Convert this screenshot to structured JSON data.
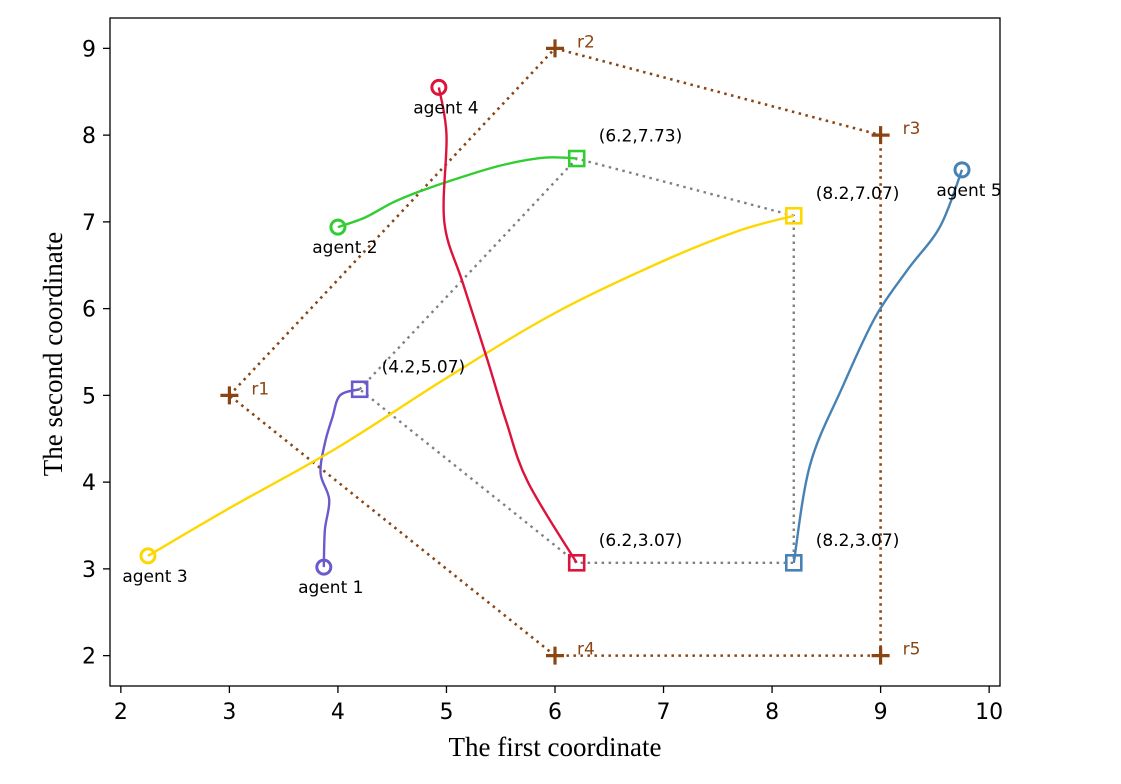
{
  "chart_data": {
    "type": "line",
    "xlabel": "The first coordinate",
    "ylabel": "The second coordinate",
    "xlim": [
      1.9,
      10.1
    ],
    "ylim": [
      1.65,
      9.35
    ],
    "xticks": [
      "2",
      "3",
      "4",
      "5",
      "6",
      "7",
      "8",
      "9",
      "10"
    ],
    "yticks": [
      "2",
      "3",
      "4",
      "5",
      "6",
      "7",
      "8",
      "9"
    ],
    "colors": {
      "boundary": "#8B4513",
      "formation": "#808080",
      "agent1": "#6A5ACD",
      "agent2": "#32CD32",
      "agent3": "#FFD700",
      "agent4": "#DC143C",
      "agent5": "#4682B4"
    },
    "boundary_points": [
      {
        "label": "r1",
        "x": 3,
        "y": 5
      },
      {
        "label": "r2",
        "x": 6,
        "y": 9
      },
      {
        "label": "r3",
        "x": 9,
        "y": 8
      },
      {
        "label": "r5",
        "x": 9,
        "y": 2
      },
      {
        "label": "r4",
        "x": 6,
        "y": 2
      }
    ],
    "formation_points": [
      {
        "label": "(4.2,5.07)",
        "x": 4.2,
        "y": 5.07,
        "agent": "agent1"
      },
      {
        "label": "(6.2,7.73)",
        "x": 6.2,
        "y": 7.73,
        "agent": "agent2"
      },
      {
        "label": "(8.2,7.07)",
        "x": 8.2,
        "y": 7.07,
        "agent": "agent3"
      },
      {
        "label": "(8.2,3.07)",
        "x": 8.2,
        "y": 3.07,
        "agent": "agent5"
      },
      {
        "label": "(6.2,3.07)",
        "x": 6.2,
        "y": 3.07,
        "agent": "agent4"
      }
    ],
    "series": [
      {
        "name": "agent 1",
        "key": "agent1",
        "x": [
          3.87,
          3.88,
          3.92,
          3.84,
          3.88,
          3.95,
          4.02,
          4.2
        ],
        "y": [
          3.02,
          3.45,
          3.8,
          4.1,
          4.45,
          4.75,
          5.0,
          5.07
        ]
      },
      {
        "name": "agent 2",
        "key": "agent2",
        "x": [
          4.0,
          4.25,
          4.5,
          4.75,
          5.1,
          5.5,
          5.9,
          6.2
        ],
        "y": [
          6.94,
          7.05,
          7.22,
          7.35,
          7.5,
          7.65,
          7.74,
          7.73
        ]
      },
      {
        "name": "agent 3",
        "key": "agent3",
        "x": [
          2.25,
          3.0,
          4.0,
          5.0,
          6.0,
          7.0,
          7.7,
          8.2
        ],
        "y": [
          3.15,
          3.7,
          4.4,
          5.2,
          5.95,
          6.55,
          6.9,
          7.07
        ]
      },
      {
        "name": "agent 4",
        "key": "agent4",
        "x": [
          4.93,
          5.0,
          4.98,
          5.15,
          5.38,
          5.55,
          5.75,
          6.2
        ],
        "y": [
          8.55,
          8.0,
          7.0,
          6.3,
          5.4,
          4.7,
          4.0,
          3.07
        ]
      },
      {
        "name": "agent 5",
        "key": "agent5",
        "x": [
          9.75,
          9.55,
          9.25,
          8.95,
          8.65,
          8.35,
          8.2
        ],
        "y": [
          7.6,
          6.95,
          6.45,
          5.9,
          5.1,
          4.2,
          3.07
        ]
      }
    ]
  }
}
